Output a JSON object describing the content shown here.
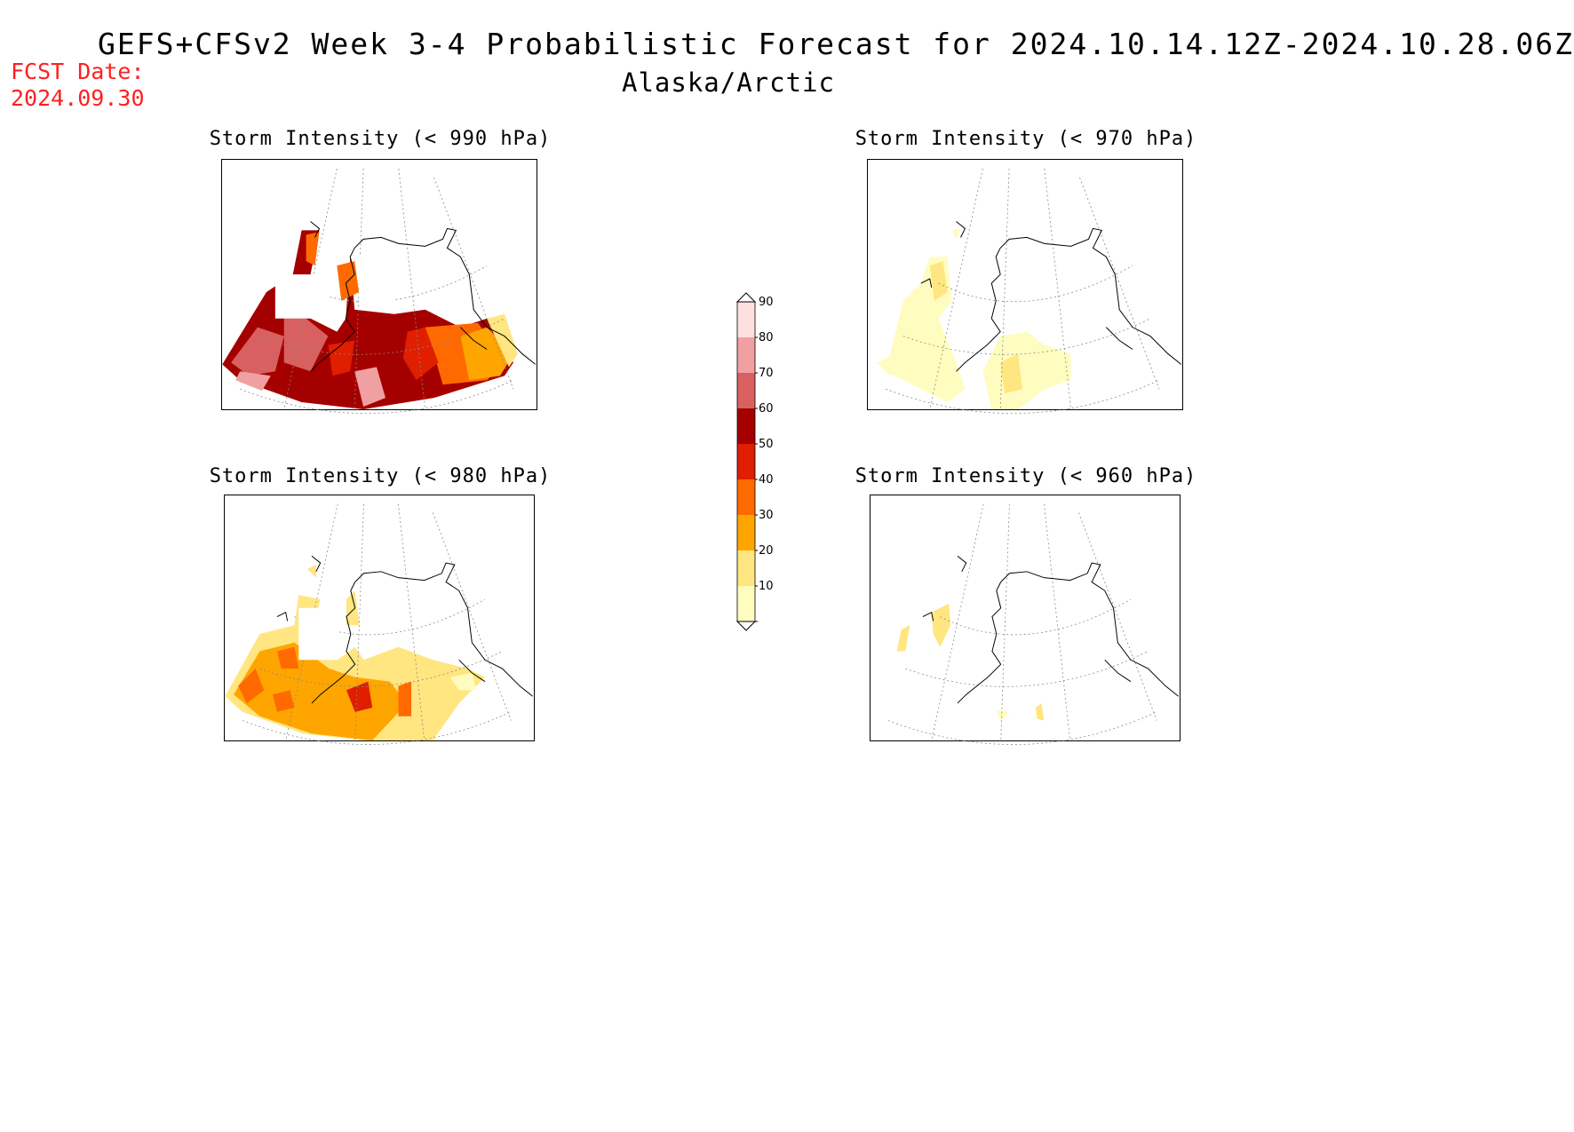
{
  "header": {
    "title": "GEFS+CFSv2 Week 3-4 Probabilistic Forecast for 2024.10.14.12Z-2024.10.28.06Z",
    "region": "Alaska/Arctic",
    "fcst_label": "FCST Date:",
    "fcst_date": "2024.09.30",
    "fcst_color": "#ff2020"
  },
  "panels": [
    {
      "id": "p990",
      "title": "Storm Intensity (< 990 hPa)"
    },
    {
      "id": "p970",
      "title": "Storm Intensity (< 970 hPa)"
    },
    {
      "id": "p980",
      "title": "Storm Intensity (< 980 hPa)"
    },
    {
      "id": "p960",
      "title": "Storm Intensity (< 960 hPa)"
    }
  ],
  "colorbar": {
    "levels": [
      "10",
      "20",
      "30",
      "40",
      "50",
      "60",
      "70",
      "80",
      "90"
    ],
    "colors": [
      "#fffcc0",
      "#ffe680",
      "#ffa500",
      "#ff6a00",
      "#e01e00",
      "#a50000",
      "#d86060",
      "#f0a0a0",
      "#ffe0e0"
    ]
  }
}
